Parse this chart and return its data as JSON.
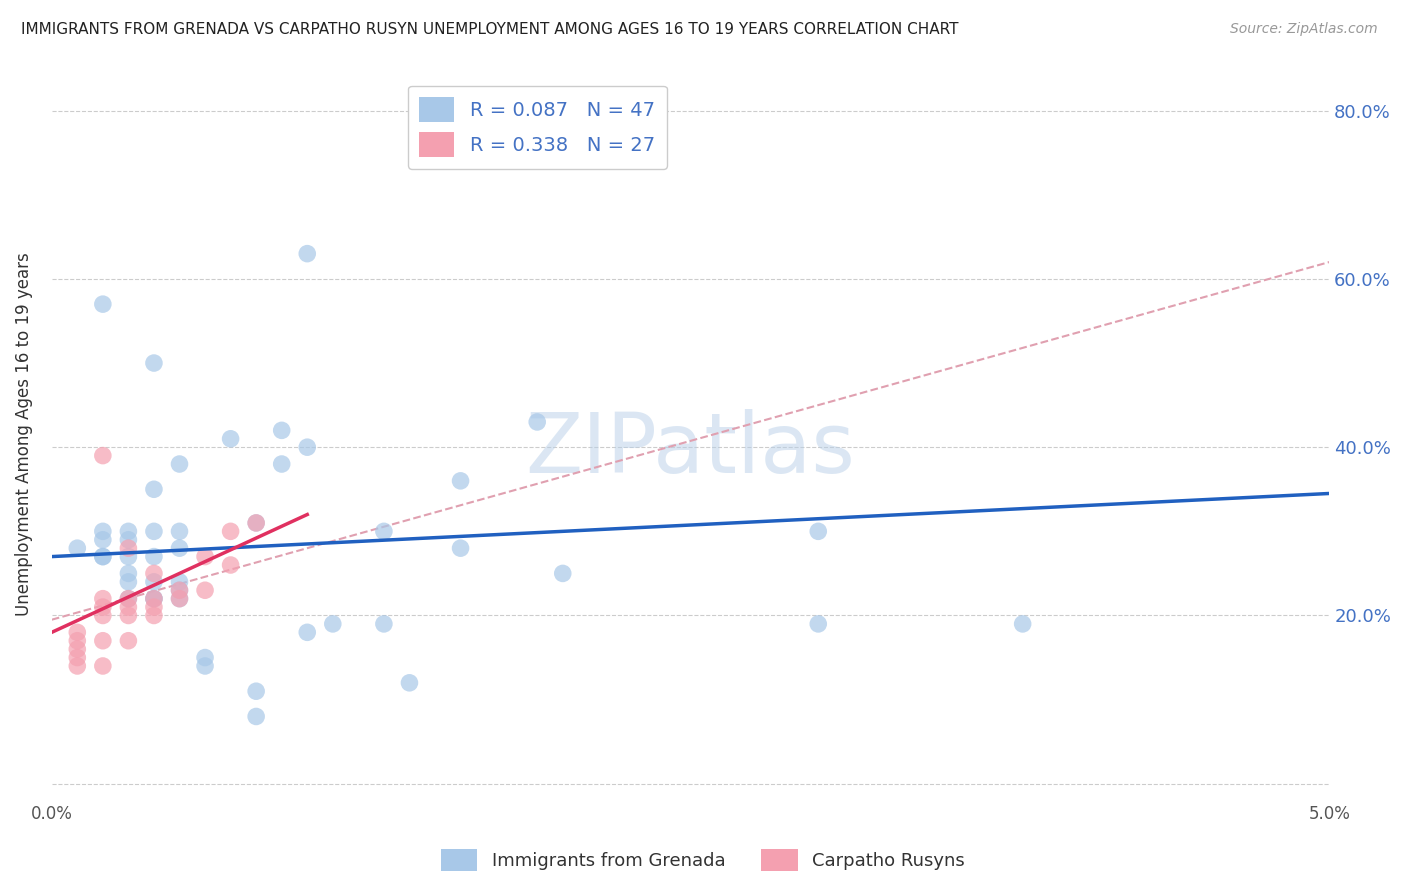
{
  "title": "IMMIGRANTS FROM GRENADA VS CARPATHO RUSYN UNEMPLOYMENT AMONG AGES 16 TO 19 YEARS CORRELATION CHART",
  "source": "Source: ZipAtlas.com",
  "ylabel": "Unemployment Among Ages 16 to 19 years",
  "xlim": [
    0.0,
    0.05
  ],
  "ylim": [
    -0.02,
    0.85
  ],
  "yticks": [
    0.0,
    0.2,
    0.4,
    0.6,
    0.8
  ],
  "ytick_labels": [
    "",
    "20.0%",
    "40.0%",
    "60.0%",
    "80.0%"
  ],
  "xticks": [
    0.0,
    0.01,
    0.02,
    0.03,
    0.04,
    0.05
  ],
  "xtick_labels": [
    "0.0%",
    "",
    "",
    "",
    "",
    "5.0%"
  ],
  "blue_R": 0.087,
  "blue_N": 47,
  "pink_R": 0.338,
  "pink_N": 27,
  "blue_color": "#a8c8e8",
  "pink_color": "#f4a0b0",
  "trendline_blue_color": "#2060c0",
  "trendline_pink_color": "#e03060",
  "trendline_dashed_color": "#e0a0b0",
  "watermark": "ZIPatlas",
  "legend_label_blue": "Immigrants from Grenada",
  "legend_label_pink": "Carpatho Rusyns",
  "blue_scatter_x": [
    0.001,
    0.002,
    0.002,
    0.002,
    0.002,
    0.002,
    0.003,
    0.003,
    0.003,
    0.003,
    0.003,
    0.003,
    0.004,
    0.004,
    0.004,
    0.004,
    0.004,
    0.004,
    0.004,
    0.005,
    0.005,
    0.005,
    0.005,
    0.005,
    0.005,
    0.006,
    0.006,
    0.007,
    0.008,
    0.008,
    0.008,
    0.009,
    0.009,
    0.01,
    0.01,
    0.01,
    0.011,
    0.013,
    0.013,
    0.014,
    0.016,
    0.016,
    0.019,
    0.02,
    0.03,
    0.03,
    0.038
  ],
  "blue_scatter_y": [
    0.28,
    0.27,
    0.29,
    0.27,
    0.3,
    0.57,
    0.22,
    0.24,
    0.27,
    0.3,
    0.25,
    0.29,
    0.22,
    0.22,
    0.24,
    0.27,
    0.3,
    0.35,
    0.5,
    0.22,
    0.23,
    0.24,
    0.28,
    0.3,
    0.38,
    0.14,
    0.15,
    0.41,
    0.08,
    0.11,
    0.31,
    0.38,
    0.42,
    0.18,
    0.4,
    0.63,
    0.19,
    0.3,
    0.19,
    0.12,
    0.28,
    0.36,
    0.43,
    0.25,
    0.19,
    0.3,
    0.19
  ],
  "pink_scatter_x": [
    0.001,
    0.001,
    0.001,
    0.001,
    0.001,
    0.002,
    0.002,
    0.002,
    0.002,
    0.002,
    0.002,
    0.003,
    0.003,
    0.003,
    0.003,
    0.003,
    0.004,
    0.004,
    0.004,
    0.004,
    0.005,
    0.005,
    0.006,
    0.006,
    0.007,
    0.007,
    0.008
  ],
  "pink_scatter_y": [
    0.18,
    0.17,
    0.16,
    0.15,
    0.14,
    0.39,
    0.22,
    0.21,
    0.2,
    0.17,
    0.14,
    0.28,
    0.22,
    0.21,
    0.2,
    0.17,
    0.25,
    0.22,
    0.21,
    0.2,
    0.23,
    0.22,
    0.27,
    0.23,
    0.26,
    0.3,
    0.31
  ],
  "blue_trend_x": [
    0.0,
    0.05
  ],
  "blue_trend_y": [
    0.27,
    0.345
  ],
  "pink_trend_x": [
    0.0,
    0.01
  ],
  "pink_trend_y": [
    0.18,
    0.32
  ],
  "dashed_trend_x": [
    0.0,
    0.05
  ],
  "dashed_trend_y": [
    0.195,
    0.62
  ]
}
